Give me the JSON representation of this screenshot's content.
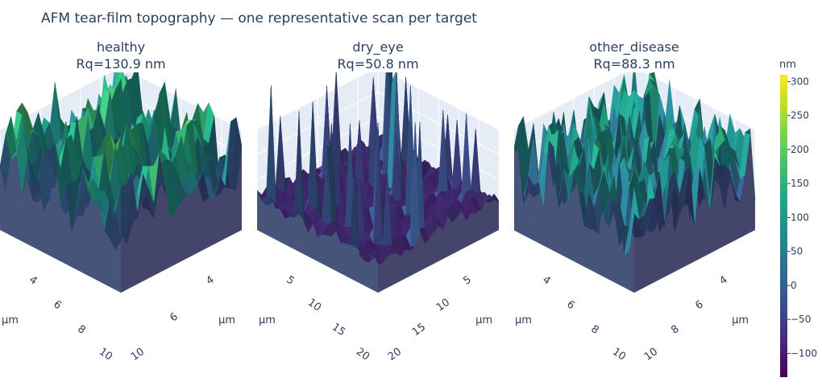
{
  "title": "AFM tear-film topography — one representative scan per target",
  "chart_data": [
    {
      "type": "surface",
      "title": "healthy",
      "subtitle": "Rq=130.9 nm",
      "xlabel": "µm",
      "ylabel": "µm",
      "x_ticks": [
        "4",
        "6",
        "8",
        "10"
      ],
      "y_ticks": [
        "4",
        "6",
        "10"
      ],
      "extent_um": 11,
      "rq_nm": 130.9,
      "pattern": "ridges",
      "z_range_nm": [
        -135,
        310
      ]
    },
    {
      "type": "surface",
      "title": "dry_eye",
      "subtitle": "Rq=50.8 nm",
      "xlabel": "µm",
      "ylabel": "µm",
      "x_ticks": [
        "5",
        "10",
        "15",
        "20"
      ],
      "y_ticks": [
        "5",
        "10",
        "15",
        "20"
      ],
      "extent_um": 23,
      "rq_nm": 50.8,
      "pattern": "flat-with-spikes",
      "z_range_nm": [
        -135,
        310
      ]
    },
    {
      "type": "surface",
      "title": "other_disease",
      "subtitle": "Rq=88.3 nm",
      "xlabel": "µm",
      "ylabel": "µm",
      "x_ticks": [
        "4",
        "6",
        "8",
        "10"
      ],
      "y_ticks": [
        "4",
        "6",
        "8",
        "10"
      ],
      "extent_um": 11,
      "rq_nm": 88.3,
      "pattern": "dense-rough",
      "z_range_nm": [
        -135,
        310
      ]
    }
  ],
  "colorbar": {
    "title": "nm",
    "colorscale": "Viridis",
    "range": [
      -135,
      310
    ],
    "ticks": [
      300,
      250,
      200,
      150,
      100,
      50,
      0,
      -50,
      -100
    ],
    "tick_labels": [
      "300",
      "250",
      "200",
      "150",
      "100",
      "50",
      "0",
      "−50",
      "−100"
    ]
  }
}
